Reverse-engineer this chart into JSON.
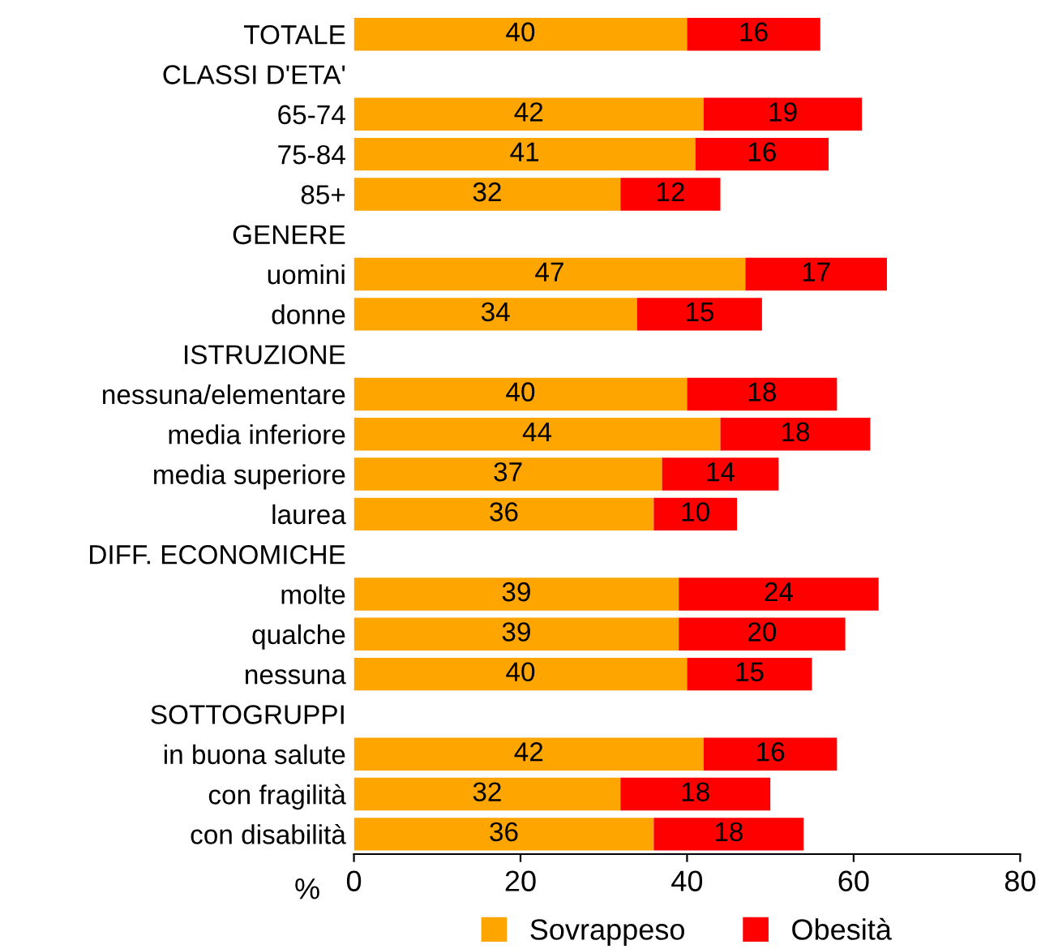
{
  "chart_data": {
    "type": "bar",
    "orientation": "horizontal",
    "stacked": true,
    "categories": [
      "TOTALE",
      "CLASSI D'ETA'",
      "65-74",
      "75-84",
      "85+",
      "GENERE",
      "uomini",
      "donne",
      "ISTRUZIONE",
      "nessuna/elementare",
      "media inferiore",
      "media superiore",
      "laurea",
      "DIFF. ECONOMICHE",
      "molte",
      "qualche",
      "nessuna",
      "SOTTOGRUPPI",
      "in buona salute",
      "con fragilità",
      "con disabilità"
    ],
    "series": [
      {
        "name": "Sovrappeso",
        "color": "#ffa500",
        "values": [
          40,
          null,
          42,
          41,
          32,
          null,
          47,
          34,
          null,
          40,
          44,
          37,
          36,
          null,
          39,
          39,
          40,
          null,
          42,
          32,
          36
        ]
      },
      {
        "name": "Obesità",
        "color": "#ff0000",
        "values": [
          16,
          null,
          19,
          16,
          12,
          null,
          17,
          15,
          null,
          18,
          18,
          14,
          10,
          null,
          24,
          20,
          15,
          null,
          16,
          18,
          18
        ]
      }
    ],
    "xlabel": "%",
    "xlim": [
      0,
      80
    ],
    "xticks": [
      0,
      20,
      40,
      60,
      80
    ],
    "data_labels": true,
    "grid": false,
    "legend": "bottom"
  }
}
